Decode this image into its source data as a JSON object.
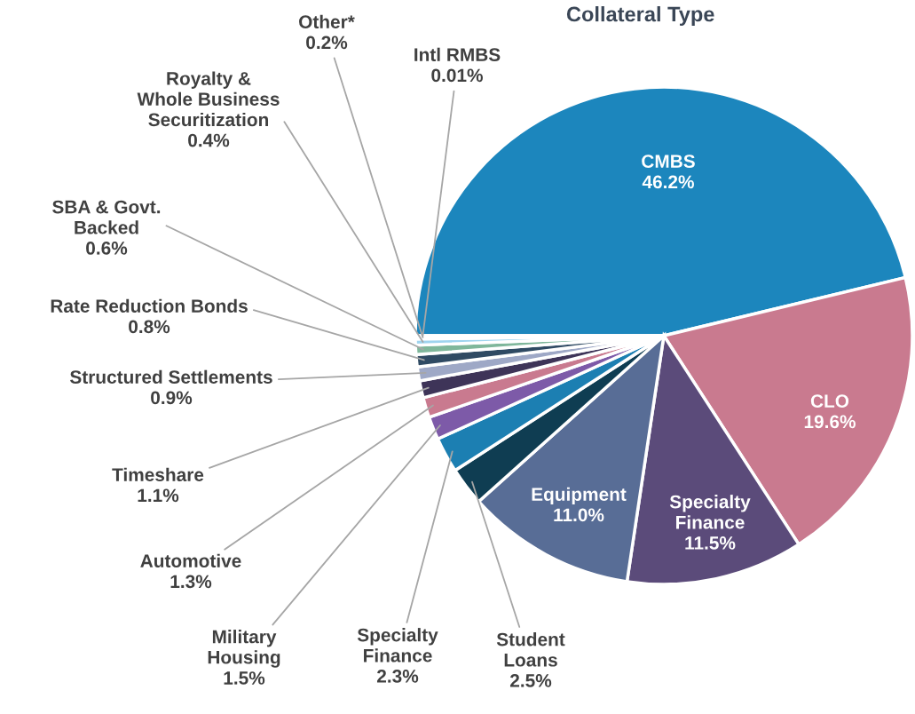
{
  "chart_data": {
    "type": "pie",
    "title": "Collateral Type",
    "categories": [
      "CMBS",
      "CLO",
      "Specialty\nFinance",
      "Equipment",
      "Student\nLoans",
      "Specialty\nFinance",
      "Military\nHousing",
      "Automotive",
      "Timeshare",
      "Structured Settlements",
      "Rate Reduction Bonds",
      "SBA & Govt.\nBacked",
      "Royalty &\nWhole Business\nSecuritization",
      "Other*",
      "Intl RMBS"
    ],
    "values": [
      46.2,
      19.6,
      11.5,
      11.0,
      2.5,
      2.3,
      1.5,
      1.3,
      1.1,
      0.9,
      0.8,
      0.6,
      0.4,
      0.2,
      0.01
    ],
    "colors": [
      "#1c86bd",
      "#c97a8f",
      "#5b4b7a",
      "#586d96",
      "#0f3d52",
      "#1c7fb2",
      "#7d5aa8",
      "#c97a8f",
      "#3e3458",
      "#9ea8c6",
      "#2f4a63",
      "#7fb79b",
      "#9fd4ef",
      "#f2bca9",
      "#e8d0c0"
    ],
    "value_labels": [
      "46.2%",
      "19.6%",
      "11.5%",
      "11.0%",
      "2.5%",
      "2.3%",
      "1.5%",
      "1.3%",
      "1.1%",
      "0.9%",
      "0.8%",
      "0.6%",
      "0.4%",
      "0.2%",
      "0.01%"
    ],
    "legend": false
  }
}
